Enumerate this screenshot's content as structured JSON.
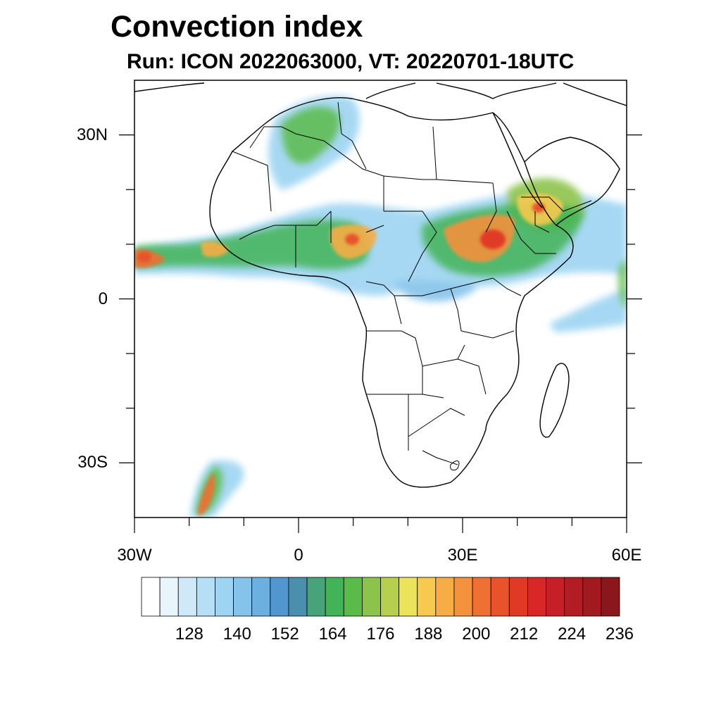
{
  "title": "Convection index",
  "subtitle": "Run: ICON 2022063000,  VT: 20220701-18UTC",
  "map": {
    "lon_range": [
      -30,
      60
    ],
    "lat_range": [
      -40,
      40
    ],
    "lat_ticks": [
      {
        "value": 30,
        "label": "30N"
      },
      {
        "value": 0,
        "label": "0"
      },
      {
        "value": -30,
        "label": "30S"
      }
    ],
    "lon_ticks": [
      {
        "value": -30,
        "label": "30W"
      },
      {
        "value": 0,
        "label": "0"
      },
      {
        "value": 30,
        "label": "30E"
      },
      {
        "value": 60,
        "label": "60E"
      }
    ]
  },
  "colorbar": {
    "colors": [
      "#ffffff",
      "#e8f5fc",
      "#cfe9f8",
      "#b6def5",
      "#9dd4f2",
      "#85c3ea",
      "#6bb0e0",
      "#5196cf",
      "#4a8fad",
      "#47a37a",
      "#42b457",
      "#5bbb4a",
      "#8cc34b",
      "#b6cf4f",
      "#ebe35a",
      "#f7c94f",
      "#f6ad45",
      "#f4913c",
      "#ef7033",
      "#e8532b",
      "#e03a27",
      "#d82726",
      "#c71f27",
      "#b41c24",
      "#a01a20",
      "#8b171c"
    ],
    "labels": [
      "128",
      "140",
      "152",
      "164",
      "176",
      "188",
      "200",
      "212",
      "224",
      "236"
    ],
    "label_boundary_index": [
      3,
      6,
      9,
      12,
      15,
      18,
      21,
      24,
      27,
      30
    ]
  }
}
